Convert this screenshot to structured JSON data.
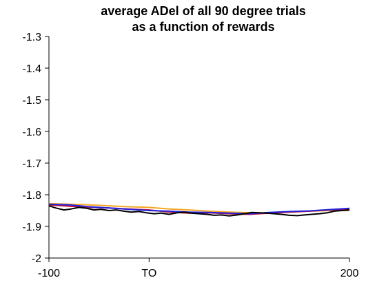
{
  "chart_data": {
    "type": "line",
    "title_lines": [
      "average ADel of all 90 degree trials",
      "as a function of rewards"
    ],
    "xlabel": "",
    "ylabel": "",
    "xlim": [
      -100,
      200
    ],
    "ylim": [
      -2,
      -1.3
    ],
    "x_ticks": [
      {
        "value": -100,
        "label": "-100"
      },
      {
        "value": 0,
        "label": "TO"
      },
      {
        "value": 200,
        "label": "200"
      }
    ],
    "y_ticks": [
      {
        "value": -1.3,
        "label": "-1.3"
      },
      {
        "value": -1.4,
        "label": "-1.4"
      },
      {
        "value": -1.5,
        "label": "-1.5"
      },
      {
        "value": -1.6,
        "label": "-1.6"
      },
      {
        "value": -1.7,
        "label": "-1.7"
      },
      {
        "value": -1.8,
        "label": "-1.8"
      },
      {
        "value": -1.9,
        "label": "-1.9"
      },
      {
        "value": -2,
        "label": "-2"
      }
    ],
    "grid": false,
    "legend": "none",
    "series": [
      {
        "color": "#f5a623",
        "x": [
          -100,
          -80,
          -60,
          -40,
          -20,
          0,
          20,
          40,
          60,
          80,
          100,
          120,
          140,
          160,
          180,
          200
        ],
        "y": [
          -1.828,
          -1.83,
          -1.832,
          -1.835,
          -1.838,
          -1.84,
          -1.845,
          -1.848,
          -1.852,
          -1.855,
          -1.857,
          -1.858,
          -1.855,
          -1.852,
          -1.85,
          -1.85
        ]
      },
      {
        "color": "#c0103c",
        "x": [
          -100,
          -80,
          -60,
          -40,
          -20,
          0,
          20,
          40,
          60,
          80,
          100,
          120,
          140,
          160,
          180,
          200
        ],
        "y": [
          -1.832,
          -1.836,
          -1.84,
          -1.842,
          -1.845,
          -1.848,
          -1.855,
          -1.858,
          -1.857,
          -1.86,
          -1.862,
          -1.858,
          -1.855,
          -1.852,
          -1.848,
          -1.845
        ]
      },
      {
        "color": "#2222dd",
        "x": [
          -100,
          -80,
          -60,
          -40,
          -20,
          0,
          20,
          40,
          60,
          80,
          100,
          120,
          140,
          160,
          180,
          200
        ],
        "y": [
          -1.83,
          -1.832,
          -1.838,
          -1.842,
          -1.846,
          -1.85,
          -1.852,
          -1.855,
          -1.856,
          -1.858,
          -1.86,
          -1.856,
          -1.853,
          -1.851,
          -1.847,
          -1.843
        ]
      },
      {
        "color": "#000000",
        "x": [
          -100,
          -93,
          -85,
          -78,
          -70,
          -62,
          -55,
          -48,
          -40,
          -33,
          -25,
          -18,
          -10,
          -3,
          5,
          12,
          20,
          28,
          35,
          42,
          50,
          58,
          65,
          72,
          80,
          88,
          95,
          102,
          110,
          118,
          125,
          132,
          140,
          148,
          155,
          162,
          170,
          178,
          185,
          192,
          200
        ],
        "y": [
          -1.835,
          -1.842,
          -1.848,
          -1.845,
          -1.84,
          -1.843,
          -1.848,
          -1.846,
          -1.85,
          -1.848,
          -1.852,
          -1.855,
          -1.853,
          -1.857,
          -1.86,
          -1.858,
          -1.862,
          -1.857,
          -1.855,
          -1.858,
          -1.86,
          -1.862,
          -1.865,
          -1.864,
          -1.867,
          -1.864,
          -1.86,
          -1.856,
          -1.857,
          -1.858,
          -1.86,
          -1.862,
          -1.865,
          -1.866,
          -1.864,
          -1.862,
          -1.86,
          -1.857,
          -1.852,
          -1.85,
          -1.848
        ]
      }
    ]
  }
}
